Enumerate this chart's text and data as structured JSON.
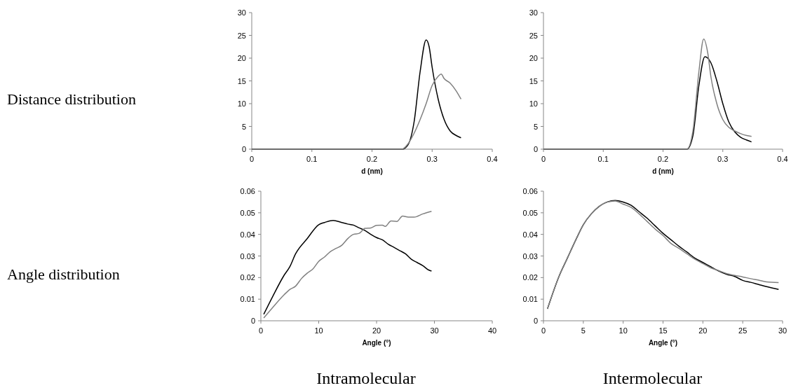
{
  "chart_data": [
    {
      "type": "line",
      "ylabel": "Distance distribution",
      "xlabel": "d (nm)",
      "xlim": [
        0,
        0.4
      ],
      "xticks": [
        0,
        0.1,
        0.2,
        0.3,
        0.4
      ],
      "ylim": [
        0,
        30
      ],
      "yticks": [
        0,
        5,
        10,
        15,
        20,
        25,
        30
      ],
      "grid": false,
      "marker": "none",
      "line_style": "solid",
      "series": [
        {
          "color": "#000000",
          "x": [
            0,
            0.24,
            0.25,
            0.26,
            0.27,
            0.28,
            0.29,
            0.295,
            0.3,
            0.31,
            0.32,
            0.33,
            0.34,
            0.348
          ],
          "values": [
            0,
            0,
            0,
            1,
            6,
            17,
            24,
            22.5,
            18,
            11,
            6.5,
            4,
            3,
            2.5
          ]
        },
        {
          "color": "#808080",
          "x": [
            0,
            0.24,
            0.25,
            0.26,
            0.27,
            0.28,
            0.29,
            0.3,
            0.31,
            0.315,
            0.32,
            0.33,
            0.34,
            0.348
          ],
          "values": [
            0,
            0,
            0,
            1.2,
            3.5,
            6.5,
            10,
            14,
            16,
            16.5,
            15.5,
            14.5,
            12.8,
            11
          ]
        }
      ]
    },
    {
      "type": "line",
      "xlabel": "d (nm)",
      "xlim": [
        0,
        0.4
      ],
      "xticks": [
        0,
        0.1,
        0.2,
        0.3,
        0.4
      ],
      "ylim": [
        0,
        30
      ],
      "yticks": [
        0,
        5,
        10,
        15,
        20,
        25,
        30
      ],
      "grid": false,
      "marker": "none",
      "line_style": "solid",
      "series": [
        {
          "color": "#000000",
          "x": [
            0,
            0.235,
            0.24,
            0.25,
            0.26,
            0.27,
            0.28,
            0.29,
            0.3,
            0.31,
            0.32,
            0.33,
            0.34,
            0.348
          ],
          "values": [
            0,
            0,
            0,
            3,
            14,
            20.3,
            19,
            15,
            10,
            6,
            3.8,
            2.6,
            2,
            1.6
          ]
        },
        {
          "color": "#808080",
          "x": [
            0,
            0.235,
            0.24,
            0.25,
            0.26,
            0.268,
            0.275,
            0.28,
            0.29,
            0.3,
            0.31,
            0.32,
            0.33,
            0.34,
            0.348
          ],
          "values": [
            0,
            0,
            0,
            4,
            17,
            24.2,
            21,
            16,
            10,
            6.5,
            4.8,
            4,
            3.4,
            3,
            2.8
          ]
        }
      ]
    },
    {
      "type": "line",
      "ylabel": "Angle distribution",
      "xlabel": "Angle (°)",
      "annotations": [
        "Intramolecular"
      ],
      "xlim": [
        0,
        40
      ],
      "xticks": [
        0,
        10,
        20,
        30,
        40
      ],
      "ylim": [
        0,
        0.06
      ],
      "yticks": [
        0,
        0.01,
        0.02,
        0.03,
        0.04,
        0.05,
        0.06
      ],
      "grid": false,
      "marker": "none",
      "line_style": "solid",
      "series": [
        {
          "color": "#000000",
          "x": [
            0.5,
            2,
            4,
            5,
            6,
            8,
            10,
            11,
            12.5,
            14,
            15,
            16,
            17,
            18,
            19,
            20,
            21,
            22,
            23,
            24,
            25,
            26,
            27,
            28,
            29,
            29.5
          ],
          "values": [
            0.003,
            0.011,
            0.021,
            0.025,
            0.031,
            0.038,
            0.0445,
            0.0455,
            0.0465,
            0.0455,
            0.0448,
            0.0443,
            0.043,
            0.0418,
            0.04,
            0.0385,
            0.0375,
            0.0355,
            0.034,
            0.0325,
            0.031,
            0.0285,
            0.027,
            0.0255,
            0.0235,
            0.023
          ]
        },
        {
          "color": "#808080",
          "x": [
            0.5,
            2,
            4,
            5,
            6,
            7,
            8,
            9,
            10,
            11,
            12,
            13,
            14,
            15,
            16,
            17,
            18,
            19,
            20,
            21,
            21.5,
            22.5,
            23.5,
            24.5,
            25.5,
            26.5,
            28,
            29.5
          ],
          "values": [
            0.0013,
            0.006,
            0.012,
            0.0145,
            0.016,
            0.0195,
            0.022,
            0.024,
            0.0275,
            0.0295,
            0.032,
            0.0335,
            0.035,
            0.038,
            0.04,
            0.0405,
            0.0428,
            0.043,
            0.0442,
            0.0443,
            0.0437,
            0.0462,
            0.046,
            0.0485,
            0.048,
            0.048,
            0.0495,
            0.0507
          ]
        }
      ]
    },
    {
      "type": "line",
      "xlabel": "Angle (°)",
      "annotations": [
        "Intermolecular"
      ],
      "xlim": [
        0,
        30
      ],
      "xticks": [
        0,
        5,
        10,
        15,
        20,
        25,
        30
      ],
      "ylim": [
        0,
        0.06
      ],
      "yticks": [
        0,
        0.01,
        0.02,
        0.03,
        0.04,
        0.05,
        0.06
      ],
      "grid": false,
      "marker": "none",
      "line_style": "solid",
      "series": [
        {
          "color": "#000000",
          "x": [
            0.5,
            2,
            3,
            4,
            5,
            6,
            7,
            8,
            9,
            10,
            11,
            12,
            13,
            14,
            15,
            16,
            17,
            18,
            19,
            20,
            21,
            22,
            23,
            24,
            25,
            26,
            27,
            28,
            29.5
          ],
          "values": [
            0.0055,
            0.021,
            0.029,
            0.037,
            0.0445,
            0.0495,
            0.053,
            0.055,
            0.0557,
            0.055,
            0.0535,
            0.0505,
            0.0475,
            0.044,
            0.0405,
            0.0375,
            0.0345,
            0.0318,
            0.029,
            0.027,
            0.025,
            0.023,
            0.0215,
            0.0205,
            0.0187,
            0.0178,
            0.0168,
            0.0158,
            0.0145
          ]
        },
        {
          "color": "#808080",
          "x": [
            0.5,
            2,
            3,
            4,
            5,
            6,
            7,
            8,
            9,
            10,
            11,
            12,
            13,
            14,
            15,
            16,
            17,
            18,
            19,
            20,
            21,
            22,
            23,
            24,
            25,
            26,
            27,
            28,
            29.5
          ],
          "values": [
            0.0055,
            0.021,
            0.029,
            0.037,
            0.0445,
            0.0495,
            0.053,
            0.055,
            0.0555,
            0.054,
            0.0525,
            0.0495,
            0.046,
            0.0425,
            0.0395,
            0.0358,
            0.0335,
            0.031,
            0.0285,
            0.0265,
            0.0245,
            0.0232,
            0.0218,
            0.021,
            0.0203,
            0.0195,
            0.0188,
            0.018,
            0.0177
          ]
        }
      ]
    }
  ]
}
